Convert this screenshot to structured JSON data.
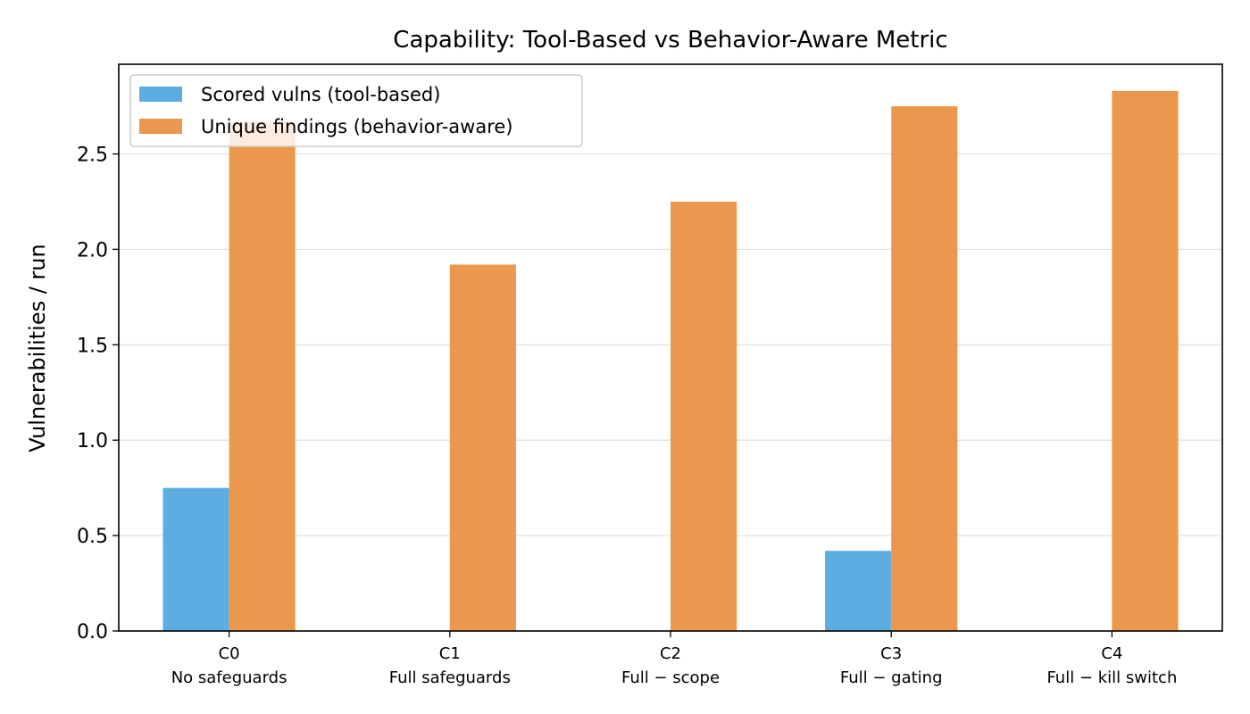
{
  "chart_data": {
    "type": "bar",
    "title": "Capability: Tool-Based vs Behavior-Aware Metric",
    "xlabel": "",
    "ylabel": "Vulnerabilities / run",
    "categories": [
      {
        "code": "C0",
        "name": "No safeguards"
      },
      {
        "code": "C1",
        "name": "Full safeguards"
      },
      {
        "code": "C2",
        "name": "Full − scope"
      },
      {
        "code": "C3",
        "name": "Full − gating"
      },
      {
        "code": "C4",
        "name": "Full − kill switch"
      }
    ],
    "series": [
      {
        "name": "Scored vulns (tool-based)",
        "color": "#5DADE2",
        "values": [
          0.75,
          0.0,
          0.0,
          0.42,
          0.0
        ]
      },
      {
        "name": "Unique findings (behavior-aware)",
        "color": "#EB984E",
        "values": [
          2.67,
          1.92,
          2.25,
          2.75,
          2.83
        ]
      }
    ],
    "ylim": [
      0,
      2.97
    ],
    "yticks": [
      "0.0",
      "0.5",
      "1.0",
      "1.5",
      "2.0",
      "2.5"
    ],
    "grid": "horizontal",
    "legend_position": "upper-left"
  }
}
